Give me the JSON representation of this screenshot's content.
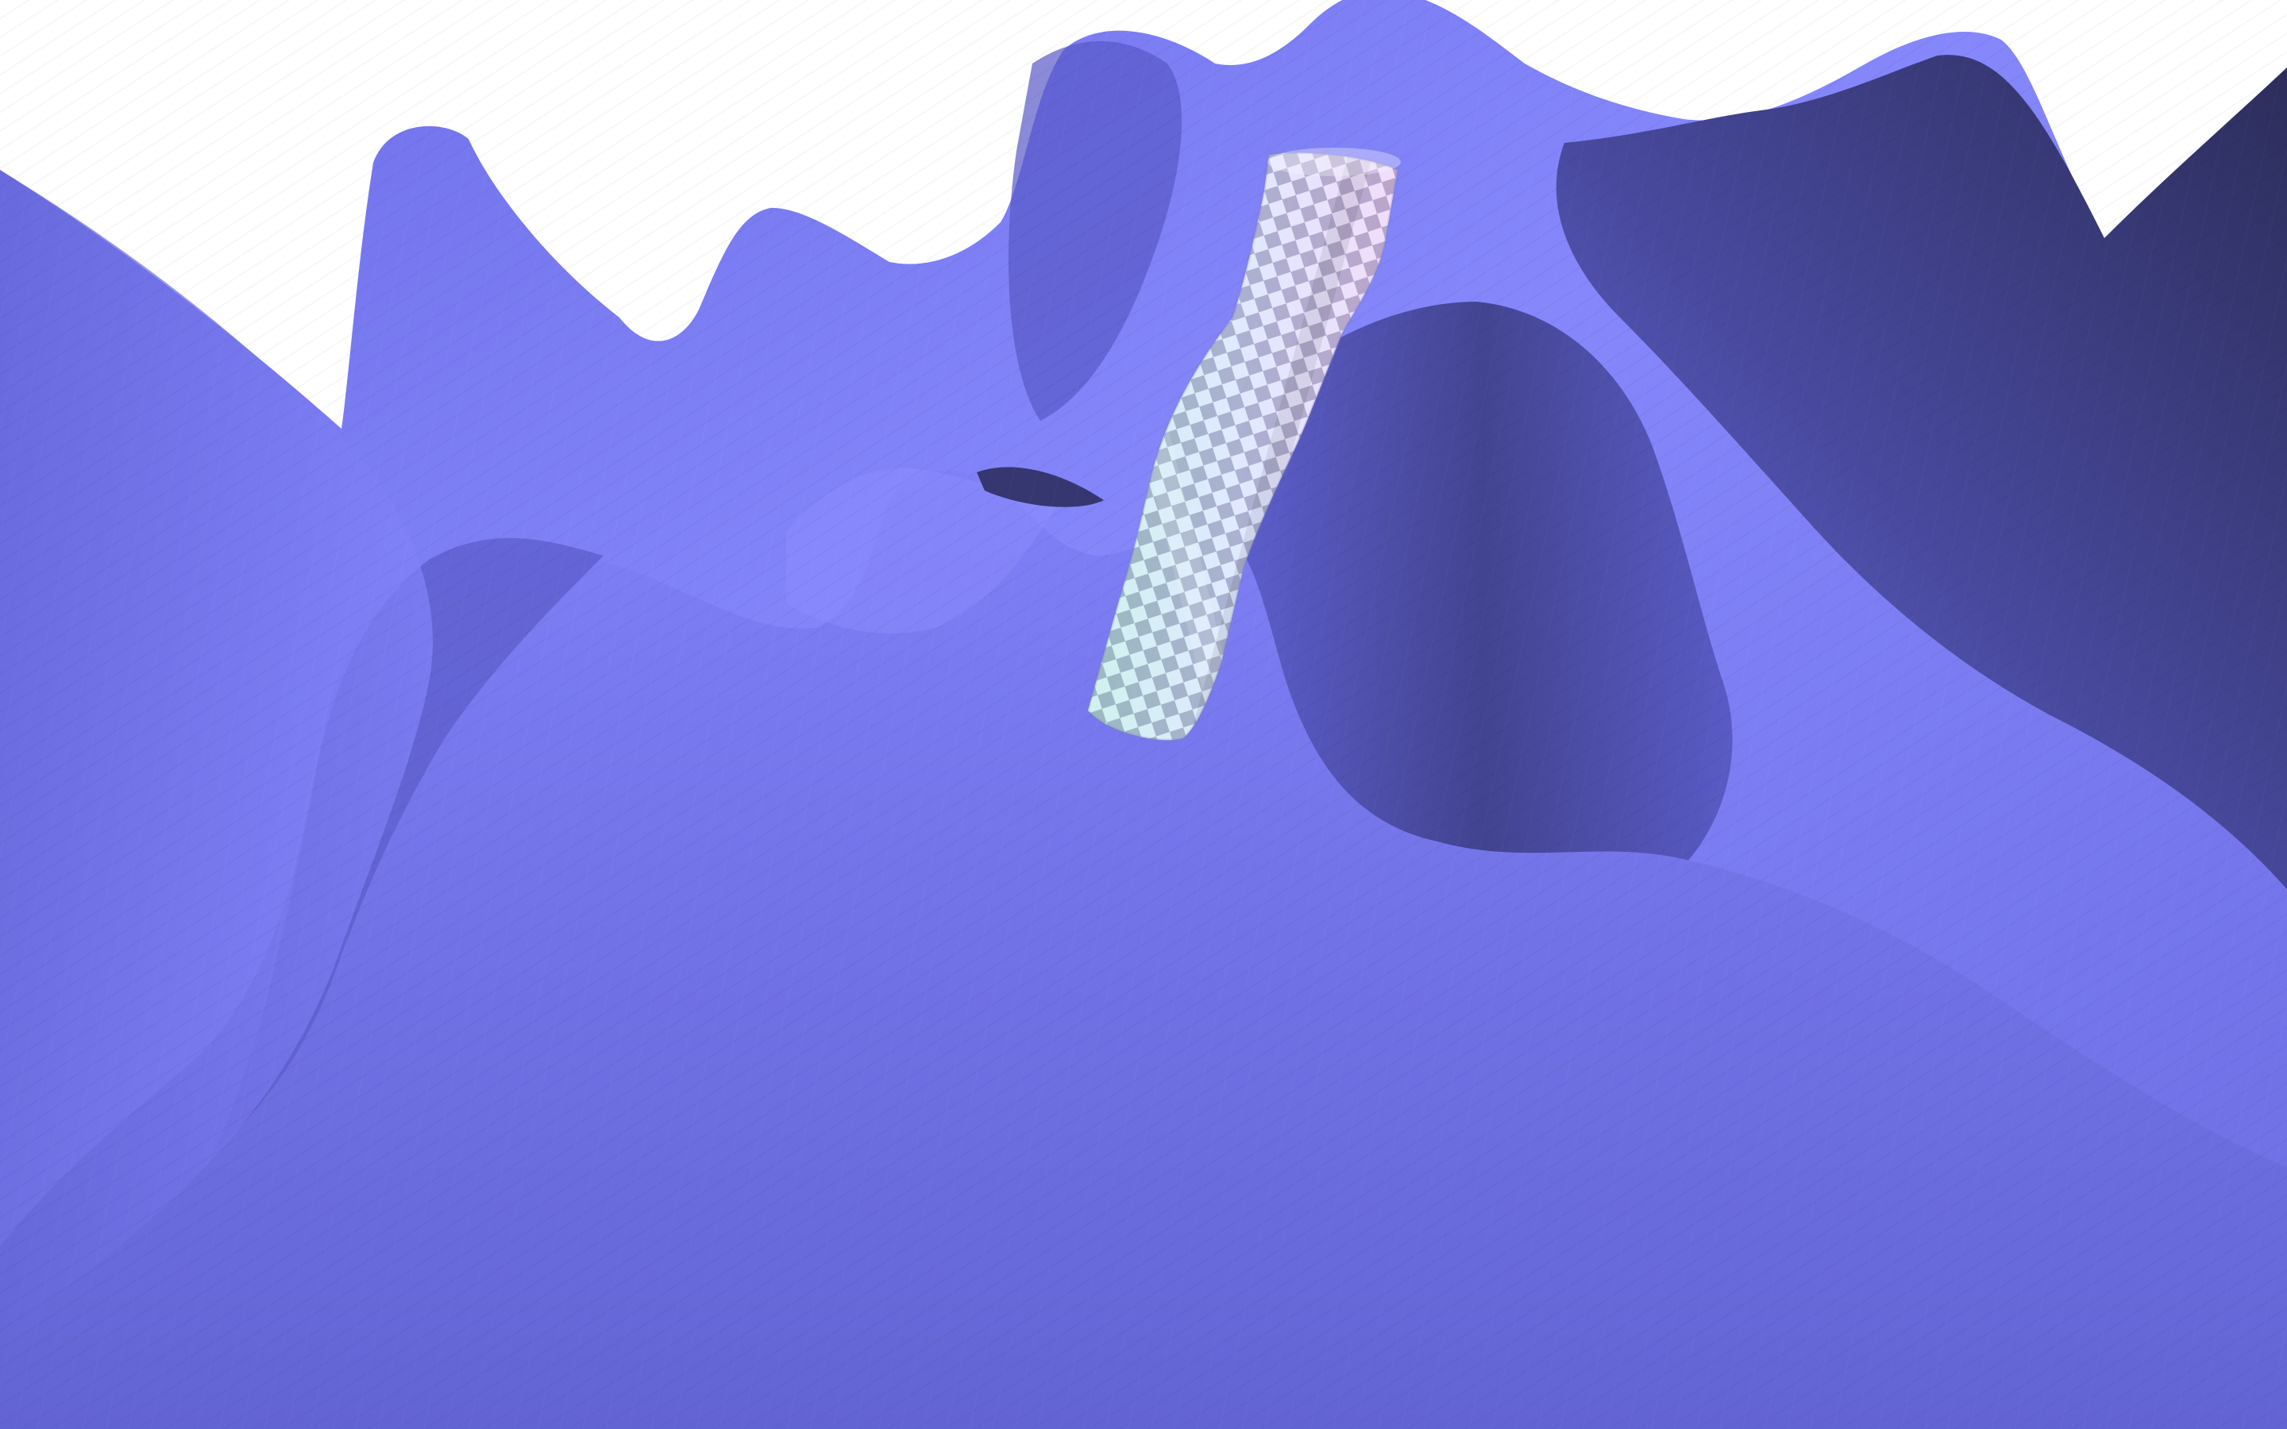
{
  "scene": {
    "background_color": "#ffffff",
    "terrain": {
      "base_color": "#7d7ef6",
      "shadow_color": "#2e2f5e",
      "highlight_color": "#8a8bff"
    },
    "tube": {
      "checker_light": "#e9f6ff",
      "checker_dark": "#8d90a8",
      "tint_start": "#a8ffd8",
      "tint_end": "#ffb8f4"
    }
  }
}
